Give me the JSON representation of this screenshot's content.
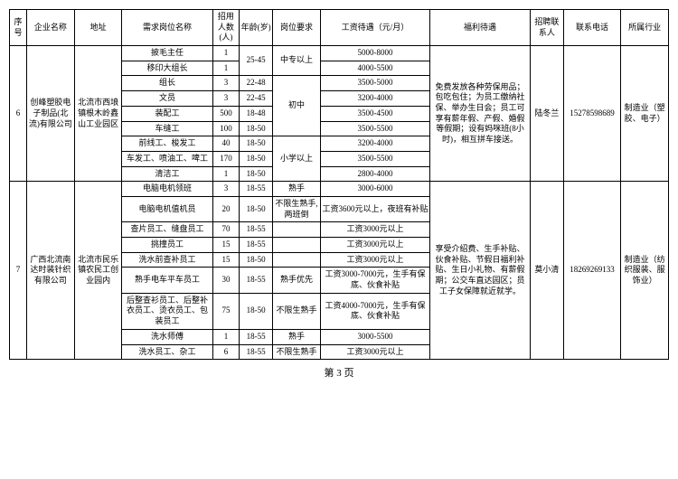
{
  "headers": {
    "seq": "序号",
    "company": "企业名称",
    "address": "地址",
    "job": "需求岗位名称",
    "count": "招用人数(人)",
    "age": "年龄(岁)",
    "req": "岗位要求",
    "salary": "工资待遇（元/月）",
    "benefit": "福利待遇",
    "contact": "招聘联系人",
    "phone": "联系电话",
    "industry": "所属行业"
  },
  "group6": {
    "seq": "6",
    "company": "创峰塑胶电子制品(北流)有限公司",
    "address": "北流市西埌镇根木岭鑫山工业园区",
    "benefit": "免费发放各种劳保用品；包吃包住；为员工缴纳社保、举办生日会；员工可享有薪年假、产假、婚假等假期；设有妈咪班(8小时)，相互拼车接送。",
    "contact": "陆冬兰",
    "phone": "15278598689",
    "industry": "制造业（塑胶、电子）",
    "rows": [
      {
        "job": "披毛主任",
        "count": "1",
        "age": "25-45",
        "req": "中专以上",
        "salary": "5000-8000"
      },
      {
        "job": "移印大组长",
        "count": "1",
        "age": "",
        "req": "",
        "salary": "4000-5500"
      },
      {
        "job": "组长",
        "count": "3",
        "age": "22-48",
        "req": "初中",
        "salary": "3500-5000"
      },
      {
        "job": "文员",
        "count": "3",
        "age": "22-45",
        "req": "",
        "salary": "3200-4000"
      },
      {
        "job": "装配工",
        "count": "500",
        "age": "18-48",
        "req": "",
        "salary": "3500-4500"
      },
      {
        "job": "车缝工",
        "count": "100",
        "age": "18-50",
        "req": "",
        "salary": "3500-5500"
      },
      {
        "job": "前线工、梭发工",
        "count": "40",
        "age": "18-50",
        "req": "小学以上",
        "salary": "3200-4000"
      },
      {
        "job": "车发工、喷油工、啤工",
        "count": "170",
        "age": "18-50",
        "req": "",
        "salary": "3500-5500"
      },
      {
        "job": "清洁工",
        "count": "1",
        "age": "18-50",
        "req": "",
        "salary": "2800-4000"
      }
    ]
  },
  "group7": {
    "seq": "7",
    "company": "广西北流南达时装针织有限公司",
    "address": "北流市民乐镇农民工创业园内",
    "benefit": "享受介绍费、生手补贴、伙食补贴、节假日福利补贴、生日小礼物、有薪假期；公交车直达园区；员工子女保障就近就学。",
    "contact": "莫小清",
    "phone": "18269269133",
    "industry": "制造业（纺织服装、服饰业）",
    "rows": [
      {
        "job": "电脑电机领班",
        "count": "3",
        "age": "18-55",
        "req": "熟手",
        "salary": "3000-6000"
      },
      {
        "job": "电脑电机值机员",
        "count": "20",
        "age": "18-50",
        "req": "不限生熟手,两班倒",
        "salary": "工资3600元以上，夜班有补贴"
      },
      {
        "job": "查片员工、缝盘员工",
        "count": "70",
        "age": "18-55",
        "req": "",
        "salary": "工资3000元以上"
      },
      {
        "job": "挑撞员工",
        "count": "15",
        "age": "18-55",
        "req": "",
        "salary": "工资3000元以上"
      },
      {
        "job": "洗水前查补员工",
        "count": "15",
        "age": "18-50",
        "req": "",
        "salary": "工资3000元以上"
      },
      {
        "job": "熟手电车平车员工",
        "count": "30",
        "age": "18-55",
        "req": "熟手优先",
        "salary": "工资3000-7000元，生手有保底、伙食补贴"
      },
      {
        "job": "后整查衫员工、后整补衣员工、烫衣员工、包装员工",
        "count": "75",
        "age": "18-50",
        "req": "不限生熟手",
        "salary": "工资4000-7000元，生手有保底、伙食补贴"
      },
      {
        "job": "洗水师傅",
        "count": "1",
        "age": "18-55",
        "req": "熟手",
        "salary": "3000-5500"
      },
      {
        "job": "洗水员工、杂工",
        "count": "6",
        "age": "18-55",
        "req": "不限生熟手",
        "salary": "工资3000元以上"
      }
    ]
  },
  "pageLabel": "第 3 页"
}
